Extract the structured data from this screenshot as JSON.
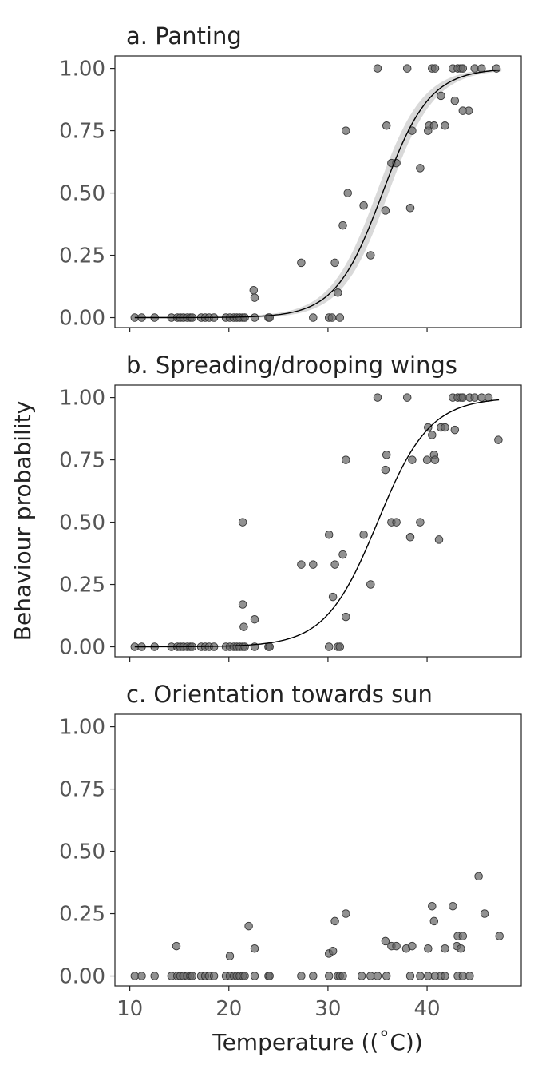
{
  "figure": {
    "xlabel": "Temperature ((˚C))",
    "ylabel": "Behaviour probability"
  },
  "chart_data": [
    {
      "type": "scatter",
      "title": "a. Panting",
      "xlim": [
        8.5,
        49.5
      ],
      "ylim": [
        -0.04,
        1.05
      ],
      "xticks": [
        10,
        20,
        30,
        40
      ],
      "yticks": [
        0,
        0.25,
        0.5,
        0.75,
        1
      ],
      "ytick_labels": [
        "0.00",
        "0.25",
        "0.50",
        "0.75",
        "1.00"
      ],
      "x_tick_labels_shown": false,
      "point_color": "#666666",
      "fit_line": true,
      "confidence_band": true,
      "fit": {
        "midpoint": 35.5,
        "slope": 0.42,
        "ci_halfwidth": 0.06
      },
      "points": [
        [
          10.5,
          0
        ],
        [
          11.2,
          0
        ],
        [
          12.5,
          0
        ],
        [
          14.2,
          0
        ],
        [
          14.8,
          0
        ],
        [
          15.1,
          0
        ],
        [
          15.4,
          0
        ],
        [
          15.8,
          0
        ],
        [
          16.1,
          0
        ],
        [
          16.3,
          0
        ],
        [
          17.2,
          0
        ],
        [
          17.6,
          0
        ],
        [
          18.0,
          0
        ],
        [
          18.5,
          0
        ],
        [
          19.7,
          0
        ],
        [
          20.1,
          0
        ],
        [
          20.5,
          0
        ],
        [
          20.8,
          0
        ],
        [
          21.1,
          0
        ],
        [
          21.4,
          0
        ],
        [
          21.6,
          0
        ],
        [
          22.6,
          0
        ],
        [
          24.0,
          0
        ],
        [
          24.1,
          0
        ],
        [
          28.5,
          0
        ],
        [
          30.1,
          0
        ],
        [
          30.4,
          0
        ],
        [
          31.2,
          0
        ],
        [
          22.5,
          0.11
        ],
        [
          22.6,
          0.08
        ],
        [
          27.3,
          0.22
        ],
        [
          30.7,
          0.22
        ],
        [
          31.0,
          0.1
        ],
        [
          31.5,
          0.37
        ],
        [
          31.8,
          0.75
        ],
        [
          32.0,
          0.5
        ],
        [
          33.6,
          0.45
        ],
        [
          34.3,
          0.25
        ],
        [
          35.8,
          0.43
        ],
        [
          35.9,
          0.77
        ],
        [
          36.4,
          0.62
        ],
        [
          36.9,
          0.62
        ],
        [
          38.3,
          0.44
        ],
        [
          38.5,
          0.75
        ],
        [
          39.3,
          0.6
        ],
        [
          40.1,
          0.75
        ],
        [
          40.2,
          0.77
        ],
        [
          40.7,
          0.77
        ],
        [
          41.4,
          0.89
        ],
        [
          41.8,
          0.77
        ],
        [
          42.8,
          0.87
        ],
        [
          43.6,
          0.83
        ],
        [
          44.2,
          0.83
        ],
        [
          35.0,
          1
        ],
        [
          38.0,
          1
        ],
        [
          40.5,
          1
        ],
        [
          40.8,
          1
        ],
        [
          42.6,
          1
        ],
        [
          43.1,
          1
        ],
        [
          43.4,
          1
        ],
        [
          43.6,
          1
        ],
        [
          44.8,
          1
        ],
        [
          45.5,
          1
        ],
        [
          47.0,
          1
        ]
      ]
    },
    {
      "type": "scatter",
      "title": "b. Spreading/drooping wings",
      "xlim": [
        8.5,
        49.5
      ],
      "ylim": [
        -0.04,
        1.05
      ],
      "xticks": [
        10,
        20,
        30,
        40
      ],
      "yticks": [
        0,
        0.25,
        0.5,
        0.75,
        1
      ],
      "ytick_labels": [
        "0.00",
        "0.25",
        "0.50",
        "0.75",
        "1.00"
      ],
      "x_tick_labels_shown": false,
      "point_color": "#666666",
      "fit_line": true,
      "confidence_band": false,
      "fit": {
        "midpoint": 35.0,
        "slope": 0.38
      },
      "points": [
        [
          10.5,
          0
        ],
        [
          11.2,
          0
        ],
        [
          12.5,
          0
        ],
        [
          14.2,
          0
        ],
        [
          14.8,
          0
        ],
        [
          15.1,
          0
        ],
        [
          15.4,
          0
        ],
        [
          15.8,
          0
        ],
        [
          16.1,
          0
        ],
        [
          16.3,
          0
        ],
        [
          17.2,
          0
        ],
        [
          17.6,
          0
        ],
        [
          18.0,
          0
        ],
        [
          18.5,
          0
        ],
        [
          19.7,
          0
        ],
        [
          20.1,
          0
        ],
        [
          20.5,
          0
        ],
        [
          20.8,
          0
        ],
        [
          21.1,
          0
        ],
        [
          21.4,
          0
        ],
        [
          21.6,
          0
        ],
        [
          22.6,
          0
        ],
        [
          24.0,
          0
        ],
        [
          24.1,
          0
        ],
        [
          30.1,
          0
        ],
        [
          31.0,
          0
        ],
        [
          31.2,
          0
        ],
        [
          21.4,
          0.5
        ],
        [
          21.4,
          0.17
        ],
        [
          21.5,
          0.08
        ],
        [
          22.6,
          0.11
        ],
        [
          27.3,
          0.33
        ],
        [
          28.5,
          0.33
        ],
        [
          30.1,
          0.45
        ],
        [
          30.5,
          0.2
        ],
        [
          30.7,
          0.33
        ],
        [
          31.5,
          0.37
        ],
        [
          31.8,
          0.12
        ],
        [
          31.8,
          0.75
        ],
        [
          33.6,
          0.45
        ],
        [
          34.3,
          0.25
        ],
        [
          35.8,
          0.71
        ],
        [
          35.9,
          0.77
        ],
        [
          36.4,
          0.5
        ],
        [
          36.9,
          0.5
        ],
        [
          38.3,
          0.44
        ],
        [
          38.5,
          0.75
        ],
        [
          39.3,
          0.5
        ],
        [
          40.0,
          0.75
        ],
        [
          40.1,
          0.88
        ],
        [
          40.5,
          0.85
        ],
        [
          40.7,
          0.77
        ],
        [
          40.8,
          0.75
        ],
        [
          41.2,
          0.43
        ],
        [
          41.4,
          0.88
        ],
        [
          41.8,
          0.88
        ],
        [
          42.8,
          0.87
        ],
        [
          47.2,
          0.83
        ],
        [
          35.0,
          1
        ],
        [
          38.0,
          1
        ],
        [
          42.6,
          1
        ],
        [
          43.1,
          1
        ],
        [
          43.4,
          1
        ],
        [
          43.6,
          1
        ],
        [
          44.3,
          1
        ],
        [
          44.8,
          1
        ],
        [
          45.5,
          1
        ],
        [
          46.2,
          1
        ]
      ]
    },
    {
      "type": "scatter",
      "title": "c. Orientation towards sun",
      "xlim": [
        8.5,
        49.5
      ],
      "ylim": [
        -0.04,
        1.05
      ],
      "xticks": [
        10,
        20,
        30,
        40
      ],
      "xtick_labels": [
        "10",
        "20",
        "30",
        "40"
      ],
      "yticks": [
        0,
        0.25,
        0.5,
        0.75,
        1
      ],
      "ytick_labels": [
        "0.00",
        "0.25",
        "0.50",
        "0.75",
        "1.00"
      ],
      "x_tick_labels_shown": true,
      "point_color": "#666666",
      "fit_line": false,
      "confidence_band": false,
      "points": [
        [
          10.5,
          0
        ],
        [
          11.2,
          0
        ],
        [
          12.5,
          0
        ],
        [
          14.2,
          0
        ],
        [
          14.8,
          0
        ],
        [
          15.1,
          0
        ],
        [
          15.4,
          0
        ],
        [
          15.8,
          0
        ],
        [
          16.1,
          0
        ],
        [
          16.3,
          0
        ],
        [
          17.2,
          0
        ],
        [
          17.6,
          0
        ],
        [
          18.0,
          0
        ],
        [
          18.5,
          0
        ],
        [
          19.7,
          0
        ],
        [
          20.1,
          0
        ],
        [
          20.5,
          0
        ],
        [
          20.8,
          0
        ],
        [
          21.1,
          0
        ],
        [
          21.4,
          0
        ],
        [
          21.6,
          0
        ],
        [
          22.6,
          0
        ],
        [
          24.0,
          0
        ],
        [
          24.1,
          0
        ],
        [
          27.3,
          0
        ],
        [
          28.5,
          0
        ],
        [
          30.1,
          0
        ],
        [
          31.0,
          0
        ],
        [
          31.2,
          0
        ],
        [
          31.5,
          0
        ],
        [
          33.4,
          0
        ],
        [
          34.3,
          0
        ],
        [
          35.0,
          0
        ],
        [
          35.9,
          0
        ],
        [
          38.3,
          0
        ],
        [
          39.3,
          0
        ],
        [
          40.1,
          0
        ],
        [
          40.8,
          0
        ],
        [
          41.4,
          0
        ],
        [
          41.8,
          0
        ],
        [
          43.1,
          0
        ],
        [
          43.6,
          0
        ],
        [
          44.3,
          0
        ],
        [
          14.7,
          0.12
        ],
        [
          20.1,
          0.08
        ],
        [
          22.0,
          0.2
        ],
        [
          22.6,
          0.11
        ],
        [
          30.1,
          0.09
        ],
        [
          30.5,
          0.1
        ],
        [
          30.7,
          0.22
        ],
        [
          31.8,
          0.25
        ],
        [
          35.8,
          0.14
        ],
        [
          36.4,
          0.12
        ],
        [
          36.9,
          0.12
        ],
        [
          37.9,
          0.11
        ],
        [
          38.5,
          0.12
        ],
        [
          40.1,
          0.11
        ],
        [
          40.5,
          0.28
        ],
        [
          40.7,
          0.22
        ],
        [
          41.8,
          0.11
        ],
        [
          42.6,
          0.28
        ],
        [
          43.0,
          0.12
        ],
        [
          43.1,
          0.16
        ],
        [
          43.4,
          0.11
        ],
        [
          43.6,
          0.16
        ],
        [
          45.2,
          0.4
        ],
        [
          45.8,
          0.25
        ],
        [
          47.3,
          0.16
        ]
      ]
    }
  ]
}
